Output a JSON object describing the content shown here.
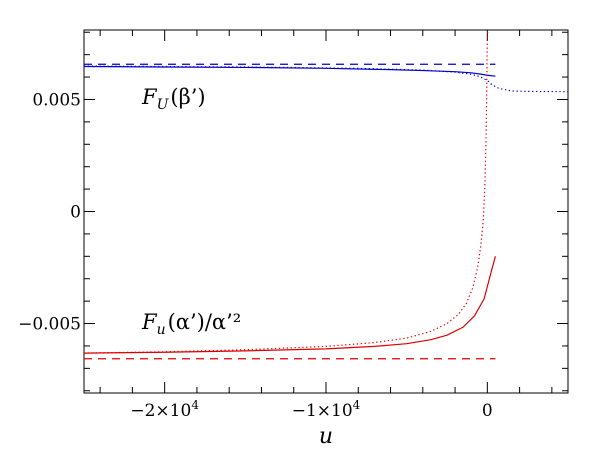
{
  "chart_data": {
    "type": "line",
    "title": "",
    "xlabel": "u",
    "ylabel": "",
    "xlim": [
      -25000,
      5000
    ],
    "ylim": [
      -0.0081,
      0.0081
    ],
    "grid": false,
    "x_ticks": [
      {
        "value": -20000,
        "mant": "−2×10",
        "exp": "4"
      },
      {
        "value": -10000,
        "mant": "−1×10",
        "exp": "4"
      },
      {
        "value": 0,
        "mant": "0",
        "exp": ""
      }
    ],
    "y_ticks": [
      {
        "value": -0.005,
        "label": "−0.005"
      },
      {
        "value": 0,
        "label": "0"
      },
      {
        "value": 0.005,
        "label": "0.005"
      }
    ],
    "annotations": {
      "upper": {
        "base": "F",
        "sub": "U",
        "arg": "(β’)"
      },
      "lower": {
        "base": "F",
        "sub": "u",
        "arg": "(α’)/α’²"
      }
    },
    "colors": {
      "blue": "#0000cc",
      "red": "#dd0000",
      "axes": "#000000"
    },
    "series": [
      {
        "color": "blue",
        "style": "dashed",
        "x": [
          -25000,
          500
        ],
        "y": [
          0.00657,
          0.00657
        ]
      },
      {
        "color": "blue",
        "style": "solid",
        "x": [
          -25000,
          -20000,
          -15000,
          -10000,
          -6000,
          -4000,
          -2000,
          -1000,
          -400,
          0,
          500
        ],
        "y": [
          0.00647,
          0.00645,
          0.00643,
          0.00639,
          0.00633,
          0.00629,
          0.00624,
          0.00619,
          0.00613,
          0.00608,
          0.00604
        ]
      },
      {
        "color": "blue",
        "style": "dotted",
        "x": [
          -25000,
          -15000,
          -8000,
          -4000,
          -2000,
          -1000,
          -500,
          0,
          300,
          700,
          1500,
          2500,
          5000
        ],
        "y": [
          0.00649,
          0.00645,
          0.00639,
          0.00631,
          0.00622,
          0.00612,
          0.00603,
          0.00585,
          0.00565,
          0.0055,
          0.00538,
          0.00536,
          0.00535
        ]
      },
      {
        "color": "red",
        "style": "dashed",
        "x": [
          -25000,
          500
        ],
        "y": [
          -0.00657,
          -0.00657
        ]
      },
      {
        "color": "red",
        "style": "solid",
        "x": [
          -25000,
          -20000,
          -15000,
          -10000,
          -7000,
          -5000,
          -3500,
          -2500,
          -1500,
          -800,
          -200,
          200,
          500
        ],
        "y": [
          -0.00632,
          -0.00628,
          -0.00622,
          -0.00613,
          -0.00602,
          -0.0059,
          -0.00572,
          -0.00552,
          -0.00516,
          -0.00466,
          -0.0039,
          -0.0028,
          -0.002
        ]
      },
      {
        "color": "red",
        "style": "dotted",
        "x": [
          -25000,
          -20000,
          -15000,
          -10000,
          -7000,
          -5000,
          -3500,
          -2500,
          -1800,
          -1300,
          -900,
          -600,
          -400,
          -250,
          -150,
          -80,
          -40,
          -20,
          0,
          20
        ],
        "y": [
          -0.00632,
          -0.00626,
          -0.00617,
          -0.00602,
          -0.00585,
          -0.00565,
          -0.00535,
          -0.005,
          -0.0046,
          -0.0041,
          -0.0034,
          -0.0025,
          -0.0015,
          -0.0004,
          0.0012,
          0.0032,
          0.0052,
          0.0067,
          0.0077,
          0.0081
        ]
      }
    ]
  }
}
